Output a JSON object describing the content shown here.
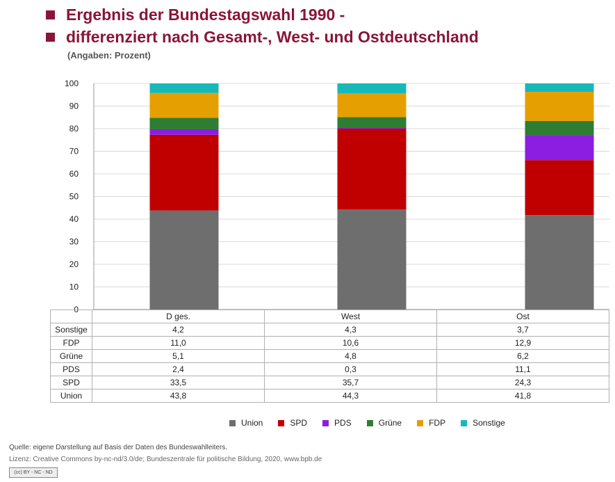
{
  "title_line1": "Ergebnis der Bundestagswahl 1990 -",
  "title_line2": "differenziert nach Gesamt-, West- und Ostdeutschland",
  "subtitle": "(Angaben: Prozent)",
  "colors": {
    "title": "#8a1538",
    "Union": "#6e6e6e",
    "SPD": "#c00000",
    "PDS": "#8b1ee0",
    "Grüne": "#2e7d32",
    "FDP": "#e69f00",
    "Sonstige": "#17b8b8"
  },
  "chart_data": {
    "type": "bar",
    "stacked": true,
    "title": "Ergebnis der Bundestagswahl 1990 - differenziert nach Gesamt-, West- und Ostdeutschland",
    "subtitle": "(Angaben: Prozent)",
    "categories": [
      "D ges.",
      "West",
      "Ost"
    ],
    "series": [
      {
        "name": "Union",
        "values": [
          43.8,
          44.3,
          41.8
        ]
      },
      {
        "name": "SPD",
        "values": [
          33.5,
          35.7,
          24.3
        ]
      },
      {
        "name": "PDS",
        "values": [
          2.4,
          0.3,
          11.1
        ]
      },
      {
        "name": "Grüne",
        "values": [
          5.1,
          4.8,
          6.2
        ]
      },
      {
        "name": "FDP",
        "values": [
          11.0,
          10.6,
          12.9
        ]
      },
      {
        "name": "Sonstige",
        "values": [
          4.2,
          4.3,
          3.7
        ]
      }
    ],
    "table_rows": [
      {
        "label": "Sonstige",
        "values": [
          "4,2",
          "4,3",
          "3,7"
        ]
      },
      {
        "label": "FDP",
        "values": [
          "11,0",
          "10,6",
          "12,9"
        ]
      },
      {
        "label": "Grüne",
        "values": [
          "5,1",
          "4,8",
          "6,2"
        ]
      },
      {
        "label": "PDS",
        "values": [
          "2,4",
          "0,3",
          "11,1"
        ]
      },
      {
        "label": "SPD",
        "values": [
          "33,5",
          "35,7",
          "24,3"
        ]
      },
      {
        "label": "Union",
        "values": [
          "43,8",
          "44,3",
          "41,8"
        ]
      }
    ],
    "yticks": [
      "0",
      "10",
      "20",
      "30",
      "40",
      "50",
      "60",
      "70",
      "80",
      "90",
      "100"
    ],
    "ylim": [
      0,
      100
    ],
    "grid": true,
    "legend": "bottom"
  },
  "footer": {
    "source": "Quelle:   eigene Darstellung auf Basis der Daten des Bundeswahlleiters.",
    "license": "Lizenz:  Creative Commons by-nc-nd/3.0/de; Bundeszentrale für politische Bildung, 2020, www.bpb.de",
    "cc_badge": "(cc) BY - NC - ND"
  }
}
